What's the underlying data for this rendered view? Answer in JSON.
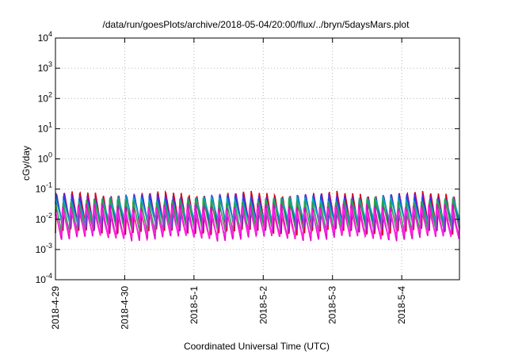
{
  "chart_data": {
    "type": "line",
    "title": "/data/run/goesPlots/archive/2018-05-04/20:00/flux/../bryn/5daysMars.plot",
    "xlabel": "Coordinated Universal Time (UTC)",
    "ylabel": "cGy/day",
    "y_scale": "log",
    "ylim": [
      0.0001,
      10000
    ],
    "y_ticks": [
      {
        "base": "10",
        "exp": "4",
        "value": 10000
      },
      {
        "base": "10",
        "exp": "3",
        "value": 1000
      },
      {
        "base": "10",
        "exp": "2",
        "value": 100
      },
      {
        "base": "10",
        "exp": "1",
        "value": 10
      },
      {
        "base": "10",
        "exp": "0",
        "value": 1
      },
      {
        "base": "10",
        "exp": "-1",
        "value": 0.1
      },
      {
        "base": "10",
        "exp": "-2",
        "value": 0.01
      },
      {
        "base": "10",
        "exp": "-3",
        "value": 0.001
      },
      {
        "base": "10",
        "exp": "-4",
        "value": 0.0001
      }
    ],
    "x_range": [
      "2018-04-29 00:00",
      "2018-05-04 20:00"
    ],
    "x_ticks": [
      "2018-4-29",
      "2018-4-30",
      "2018-5-1",
      "2018-5-2",
      "2018-5-3",
      "2018-5-4"
    ],
    "grid": true,
    "period_hours": 2.7,
    "series": [
      {
        "color": "#d4000b",
        "peak": 0.075,
        "trough": 0.0035
      },
      {
        "color": "#6a1fd4",
        "peak": 0.065,
        "trough": 0.0045
      },
      {
        "color": "#1a4fe0",
        "peak": 0.058,
        "trough": 0.006
      },
      {
        "color": "#0aa8b8",
        "peak": 0.05,
        "trough": 0.008
      },
      {
        "color": "#2e9e4a",
        "peak": 0.045,
        "trough": 0.004
      },
      {
        "color": "#e40ec8",
        "peak": 0.03,
        "trough": 0.0022
      },
      {
        "color": "#ff22e6",
        "peak": 0.022,
        "trough": 0.0028
      }
    ]
  }
}
